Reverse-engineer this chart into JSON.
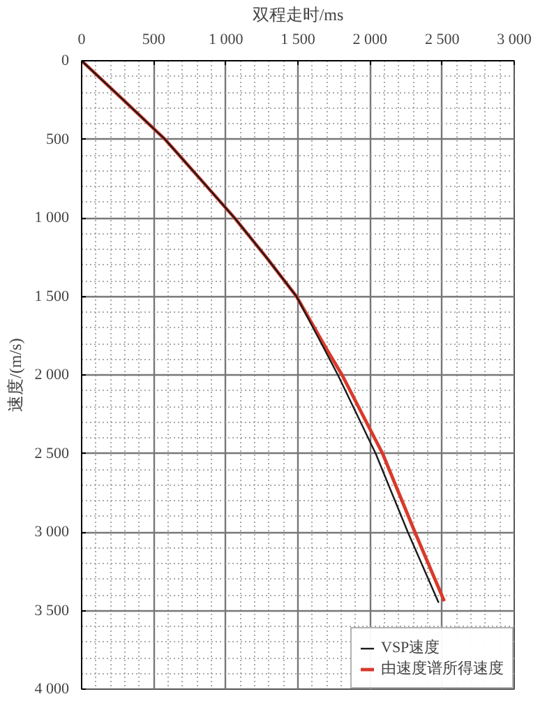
{
  "chart_data": {
    "type": "line",
    "xlabel": "双程走时/ms",
    "ylabel": "速度/(m/s)",
    "xlim": [
      0,
      3000
    ],
    "ylim": [
      4000,
      0
    ],
    "xticks": [
      0,
      500,
      {
        "value": 1000,
        "label": "1 000"
      },
      {
        "value": 1500,
        "label": "1 500"
      },
      {
        "value": 2000,
        "label": "2 000"
      },
      {
        "value": 2500,
        "label": "2 500"
      },
      {
        "value": 3000,
        "label": "3 000"
      }
    ],
    "yticks": [
      0,
      500,
      {
        "value": 1000,
        "label": "1 000"
      },
      {
        "value": 1500,
        "label": "1 500"
      },
      {
        "value": 2000,
        "label": "2 000"
      },
      {
        "value": 2500,
        "label": "2 500"
      },
      {
        "value": 3000,
        "label": "3 000"
      },
      {
        "value": 3500,
        "label": "3 500"
      },
      {
        "value": 4000,
        "label": "4 000"
      }
    ],
    "grid": true,
    "legend": "bottom right",
    "marker": "none",
    "line_style": "solid",
    "series": [
      {
        "name": "VSP速度",
        "color": "#1a1a1a",
        "x": [
          0,
          290,
          578,
          820,
          1060,
          1280,
          1490,
          1680,
          1777,
          2039,
          2262,
          2476
        ],
        "values": [
          0,
          250,
          500,
          750,
          1000,
          1250,
          1500,
          1830,
          2000,
          2500,
          3000,
          3450
        ]
      },
      {
        "name": "由速度谱所得速度",
        "color": "#d93a2b",
        "x": [
          0,
          290,
          578,
          820,
          1060,
          1280,
          1490,
          1695,
          1806,
          2087,
          2311,
          2515
        ],
        "values": [
          0,
          250,
          500,
          750,
          1000,
          1250,
          1500,
          1830,
          2000,
          2500,
          3000,
          3440
        ]
      }
    ]
  }
}
